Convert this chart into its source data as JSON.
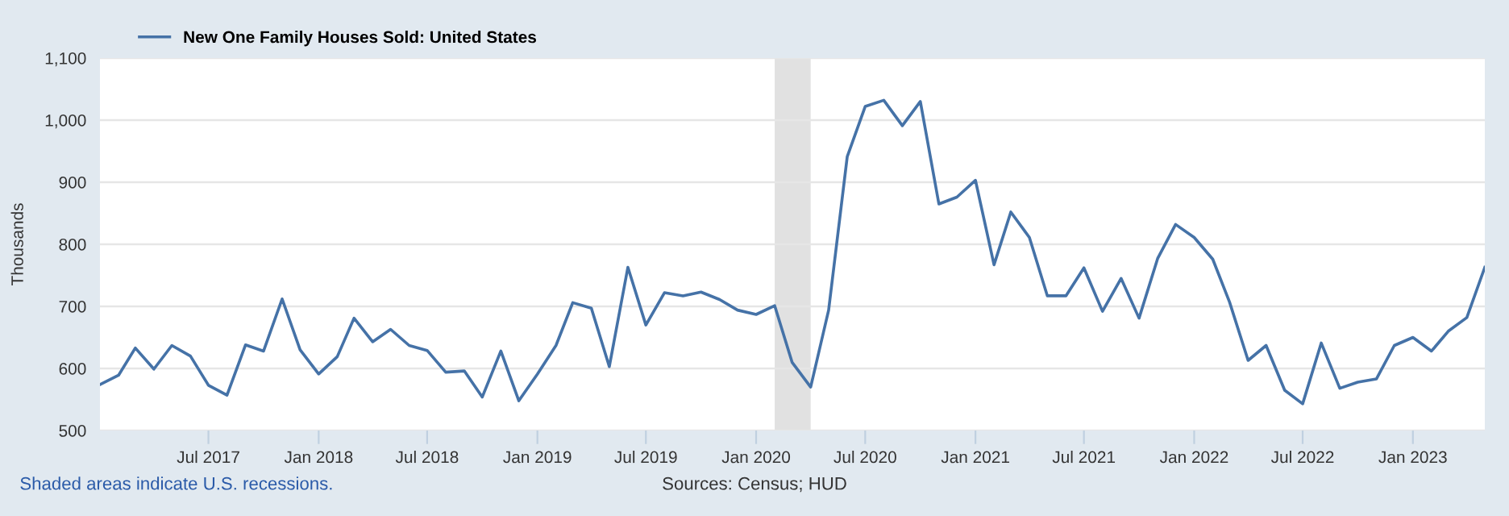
{
  "chart_data": {
    "type": "line",
    "ylabel": "Thousands",
    "x": [
      "2017-01",
      "2017-02",
      "2017-03",
      "2017-04",
      "2017-05",
      "2017-06",
      "2017-07",
      "2017-08",
      "2017-09",
      "2017-10",
      "2017-11",
      "2017-12",
      "2018-01",
      "2018-02",
      "2018-03",
      "2018-04",
      "2018-05",
      "2018-06",
      "2018-07",
      "2018-08",
      "2018-09",
      "2018-10",
      "2018-11",
      "2018-12",
      "2019-01",
      "2019-02",
      "2019-03",
      "2019-04",
      "2019-05",
      "2019-06",
      "2019-07",
      "2019-08",
      "2019-09",
      "2019-10",
      "2019-11",
      "2019-12",
      "2020-01",
      "2020-02",
      "2020-03",
      "2020-04",
      "2020-05",
      "2020-06",
      "2020-07",
      "2020-08",
      "2020-09",
      "2020-10",
      "2020-11",
      "2020-12",
      "2021-01",
      "2021-02",
      "2021-03",
      "2021-04",
      "2021-05",
      "2021-06",
      "2021-07",
      "2021-08",
      "2021-09",
      "2021-10",
      "2021-11",
      "2021-12",
      "2022-01",
      "2022-02",
      "2022-03",
      "2022-04",
      "2022-05",
      "2022-06",
      "2022-07",
      "2022-08",
      "2022-09",
      "2022-10",
      "2022-11",
      "2022-12",
      "2023-01",
      "2023-02",
      "2023-03",
      "2023-04",
      "2023-05"
    ],
    "series": [
      {
        "name": "New One Family Houses Sold: United States",
        "color": "#4572a7",
        "values": [
          574,
          589,
          633,
          599,
          637,
          620,
          573,
          557,
          638,
          628,
          712,
          630,
          591,
          619,
          681,
          643,
          663,
          637,
          629,
          594,
          596,
          554,
          628,
          548,
          591,
          637,
          706,
          697,
          603,
          763,
          670,
          722,
          717,
          723,
          711,
          694,
          687,
          701,
          610,
          570,
          694,
          941,
          1022,
          1032,
          991,
          1030,
          865,
          876,
          903,
          767,
          852,
          811,
          717,
          717,
          762,
          692,
          745,
          681,
          777,
          832,
          811,
          776,
          707,
          613,
          637,
          565,
          543,
          641,
          568,
          578,
          583,
          637,
          650,
          628,
          660,
          682,
          763
        ]
      }
    ],
    "ylim": [
      500,
      1100
    ],
    "yticks": [
      500,
      600,
      700,
      800,
      900,
      {
        "value": 1000,
        "label": "1,000"
      },
      {
        "value": 1100,
        "label": "1,100"
      }
    ],
    "xlim": [
      "2017-01",
      "2023-05"
    ],
    "xticks": [
      {
        "value": "2017-07",
        "label": "Jul 2017"
      },
      {
        "value": "2018-01",
        "label": "Jan 2018"
      },
      {
        "value": "2018-07",
        "label": "Jul 2018"
      },
      {
        "value": "2019-01",
        "label": "Jan 2019"
      },
      {
        "value": "2019-07",
        "label": "Jul 2019"
      },
      {
        "value": "2020-01",
        "label": "Jan 2020"
      },
      {
        "value": "2020-07",
        "label": "Jul 2020"
      },
      {
        "value": "2021-01",
        "label": "Jan 2021"
      },
      {
        "value": "2021-07",
        "label": "Jul 2021"
      },
      {
        "value": "2022-01",
        "label": "Jan 2022"
      },
      {
        "value": "2022-07",
        "label": "Jul 2022"
      },
      {
        "value": "2023-01",
        "label": "Jan 2023"
      }
    ],
    "bands": [
      {
        "axis": "x",
        "from": "2020-02",
        "to": "2020-04",
        "color": "#e1e1e1"
      }
    ],
    "grid": "y",
    "legend": "top left",
    "marker": "none",
    "line_style": "solid",
    "annotations": [
      "Shaded areas indicate U.S. recessions.",
      "Sources: Census; HUD"
    ]
  }
}
